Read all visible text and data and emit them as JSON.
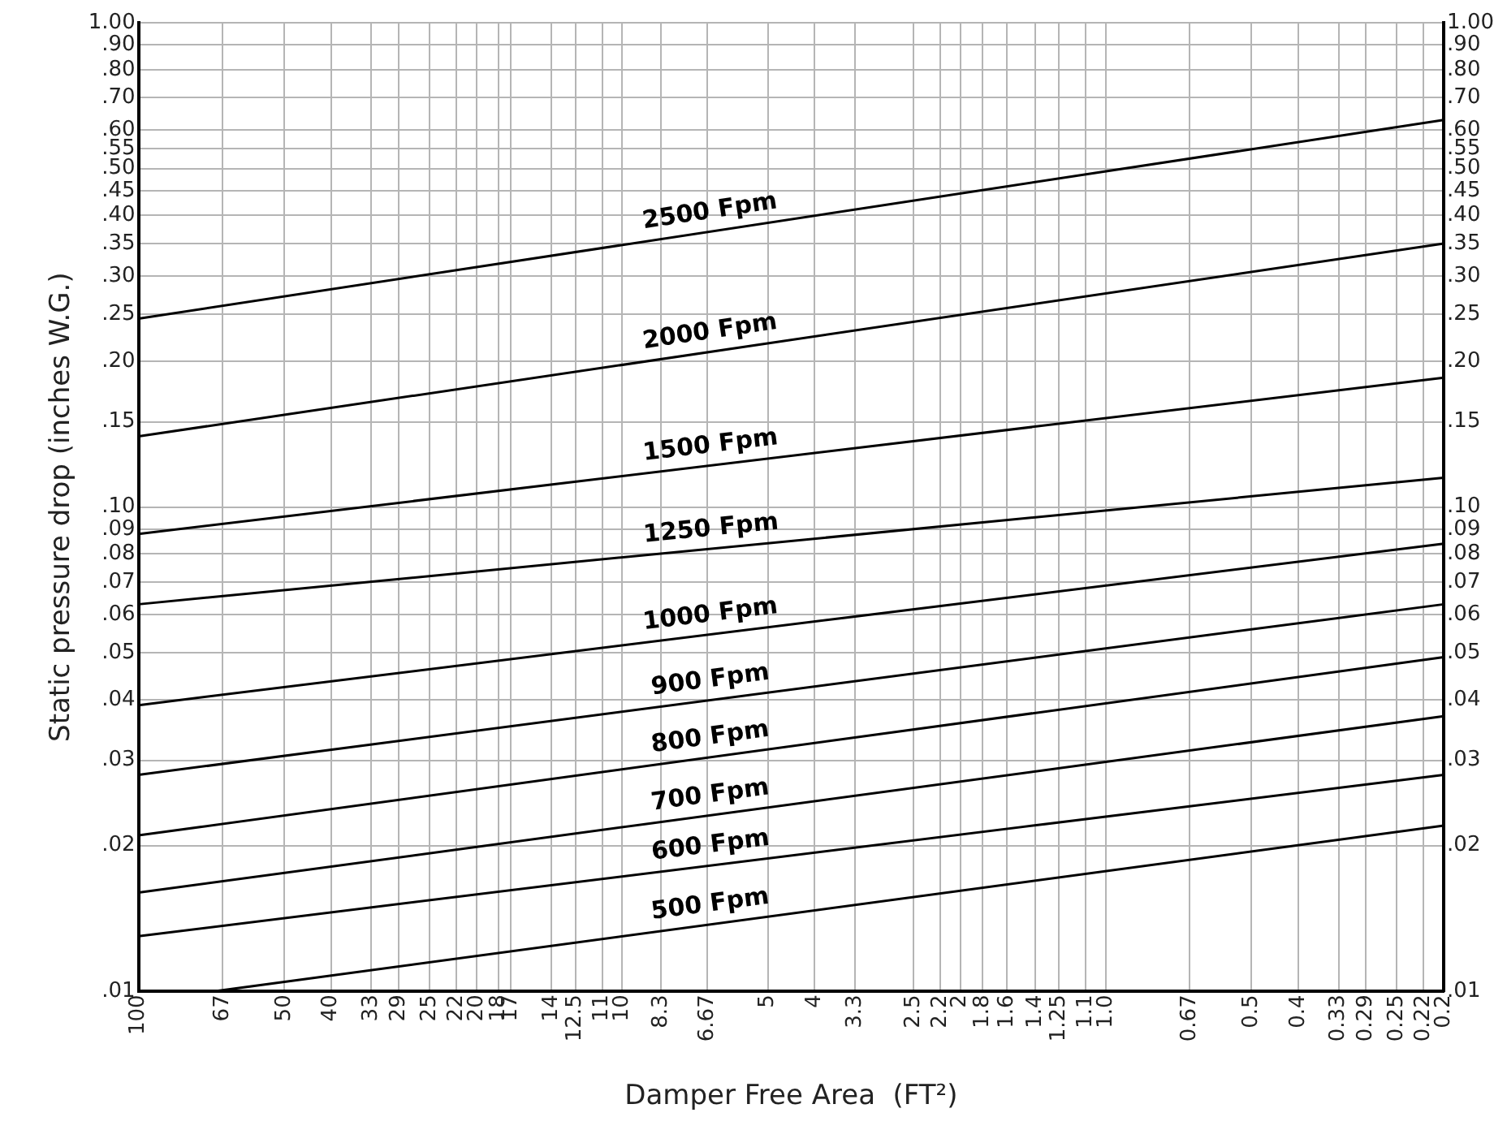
{
  "chart_data": {
    "type": "line",
    "xlabel": "Damper Free Area  (FT²)",
    "ylabel": "Static pressure drop (inches W.G.)",
    "log": "xy",
    "grid": true,
    "legend": false,
    "marker": "none",
    "line_style": "solid",
    "xlim": [
      100,
      0.2
    ],
    "xticks": [
      100,
      67,
      50,
      40,
      33,
      29,
      25,
      22,
      20,
      18,
      17,
      14,
      12.5,
      11,
      10,
      8.3,
      6.67,
      5,
      4,
      3.3,
      2.5,
      2.2,
      2,
      1.8,
      1.6,
      1.4,
      1.25,
      1.1,
      {
        "value": 1,
        "label": "1.0"
      },
      0.67,
      0.5,
      0.4,
      0.33,
      0.29,
      0.25,
      0.22,
      0.2
    ],
    "ylim": [
      0.01,
      1
    ],
    "yticks": [
      {
        "value": 0.01,
        "label": ".01"
      },
      {
        "value": 0.02,
        "label": ".02"
      },
      {
        "value": 0.03,
        "label": ".03"
      },
      {
        "value": 0.04,
        "label": ".04"
      },
      {
        "value": 0.05,
        "label": ".05"
      },
      {
        "value": 0.06,
        "label": ".06"
      },
      {
        "value": 0.07,
        "label": ".07"
      },
      {
        "value": 0.08,
        "label": ".08"
      },
      {
        "value": 0.09,
        "label": ".09"
      },
      {
        "value": 0.1,
        "label": ".10"
      },
      {
        "value": 0.15,
        "label": ".15"
      },
      {
        "value": 0.2,
        "label": ".20"
      },
      {
        "value": 0.25,
        "label": ".25"
      },
      {
        "value": 0.3,
        "label": ".30"
      },
      {
        "value": 0.35,
        "label": ".35"
      },
      {
        "value": 0.4,
        "label": ".40"
      },
      {
        "value": 0.45,
        "label": ".45"
      },
      {
        "value": 0.5,
        "label": ".50"
      },
      {
        "value": 0.55,
        "label": ".55"
      },
      {
        "value": 0.6,
        "label": ".60"
      },
      {
        "value": 0.7,
        "label": ".70"
      },
      {
        "value": 0.8,
        "label": ".80"
      },
      {
        "value": 0.9,
        "label": ".90"
      },
      {
        "value": 1,
        "label": "1.00"
      }
    ],
    "series": [
      {
        "name": "2500 Fpm",
        "color": "#000000",
        "x": [
          100,
          0.2
        ],
        "values": [
          0.245,
          0.63
        ]
      },
      {
        "name": "2000 Fpm",
        "color": "#000000",
        "x": [
          100,
          0.2
        ],
        "values": [
          0.14,
          0.35
        ]
      },
      {
        "name": "1500 Fpm",
        "color": "#000000",
        "x": [
          100,
          0.2
        ],
        "values": [
          0.088,
          0.185
        ]
      },
      {
        "name": "1250 Fpm",
        "color": "#000000",
        "x": [
          100,
          0.2
        ],
        "values": [
          0.063,
          0.115
        ]
      },
      {
        "name": "1000 Fpm",
        "color": "#000000",
        "x": [
          100,
          0.2
        ],
        "values": [
          0.039,
          0.084
        ]
      },
      {
        "name": "900 Fpm",
        "color": "#000000",
        "x": [
          100,
          0.2
        ],
        "values": [
          0.028,
          0.063
        ]
      },
      {
        "name": "800 Fpm",
        "color": "#000000",
        "x": [
          100,
          0.2
        ],
        "values": [
          0.021,
          0.049
        ]
      },
      {
        "name": "700 Fpm",
        "color": "#000000",
        "x": [
          100,
          0.2
        ],
        "values": [
          0.016,
          0.037
        ]
      },
      {
        "name": "600 Fpm",
        "color": "#000000",
        "x": [
          100,
          0.2
        ],
        "values": [
          0.013,
          0.028
        ]
      },
      {
        "name": "500 Fpm",
        "color": "#000000",
        "x": [
          70,
          0.2
        ],
        "values": [
          0.01,
          0.022
        ]
      }
    ]
  }
}
